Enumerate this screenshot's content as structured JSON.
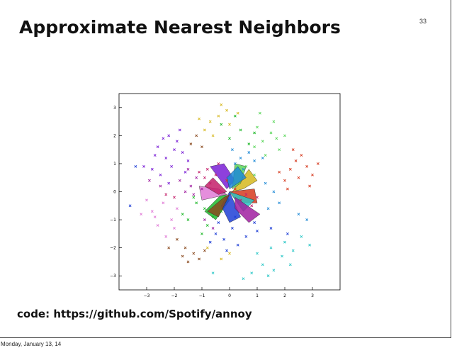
{
  "slide": {
    "title": "Approximate Nearest Neighbors",
    "page_number": "33",
    "code_line": "code: https://github.com/Spotify/annoy",
    "footer_date": "Monday, January 13, 14"
  },
  "chart_data": {
    "type": "scatter",
    "title": "",
    "xlabel": "",
    "ylabel": "",
    "xlim": [
      -4,
      4
    ],
    "ylim": [
      -3.5,
      3.5
    ],
    "x_ticks": [
      "−3",
      "−2",
      "−1",
      "0",
      "1",
      "2",
      "3"
    ],
    "x_tick_values": [
      -3,
      -2,
      -1,
      0,
      1,
      2,
      3
    ],
    "y_ticks": [
      "3",
      "2",
      "1",
      "0",
      "−1",
      "−2",
      "−3"
    ],
    "y_tick_values": [
      3,
      2,
      1,
      0,
      -1,
      -2,
      -3
    ],
    "grid": false,
    "legend": "none",
    "marker": "x",
    "description_colors": [
      "#7a1fd6",
      "#1f3fd6",
      "#d63a1f",
      "#1fb82a",
      "#e07ad6",
      "#2ac7c7",
      "#d6b81f",
      "#8a4a1f",
      "#c41f6a",
      "#5ad65a",
      "#1f8ad6",
      "#a01fa0"
    ],
    "series": [
      {
        "color": "#7a1fd6",
        "points": [
          [
            -2.6,
            1.6
          ],
          [
            -2.3,
            1.2
          ],
          [
            -2.1,
            0.9
          ],
          [
            -2.5,
            0.6
          ],
          [
            -1.9,
            1.8
          ],
          [
            -2.2,
            2.0
          ],
          [
            -1.7,
            1.4
          ],
          [
            -2.8,
            0.8
          ],
          [
            -2.0,
            1.5
          ],
          [
            -1.6,
            0.7
          ],
          [
            -2.4,
            1.9
          ],
          [
            -1.8,
            2.2
          ],
          [
            -3.1,
            0.9
          ],
          [
            -2.2,
            0.3
          ],
          [
            -1.5,
            1.1
          ],
          [
            -2.7,
            1.3
          ]
        ]
      },
      {
        "color": "#1f3fd6",
        "points": [
          [
            -0.5,
            -1.5
          ],
          [
            -0.2,
            -1.7
          ],
          [
            0.1,
            -1.3
          ],
          [
            -0.4,
            -1.1
          ],
          [
            0.3,
            -1.9
          ],
          [
            -0.1,
            -2.1
          ],
          [
            1.0,
            -1.4
          ],
          [
            0.6,
            -1.6
          ],
          [
            -0.7,
            -1.8
          ],
          [
            0.2,
            -0.9
          ],
          [
            0.9,
            -1.1
          ],
          [
            -3.4,
            0.9
          ],
          [
            -3.6,
            -0.5
          ],
          [
            1.5,
            -1.3
          ],
          [
            2.1,
            -1.5
          ]
        ]
      },
      {
        "color": "#d63a1f",
        "points": [
          [
            2.2,
            0.8
          ],
          [
            2.5,
            0.5
          ],
          [
            2.8,
            0.9
          ],
          [
            2.4,
            1.1
          ],
          [
            2.0,
            0.4
          ],
          [
            3.0,
            0.6
          ],
          [
            2.6,
            1.3
          ],
          [
            2.1,
            0.1
          ],
          [
            3.2,
            1.0
          ],
          [
            2.9,
            0.2
          ],
          [
            1.8,
            0.7
          ],
          [
            2.3,
            1.5
          ],
          [
            -0.1,
            0.4
          ],
          [
            0.2,
            0.1
          ]
        ]
      },
      {
        "color": "#1fb82a",
        "points": [
          [
            -0.9,
            -0.6
          ],
          [
            -0.6,
            -0.9
          ],
          [
            -1.2,
            -0.4
          ],
          [
            -0.8,
            -1.2
          ],
          [
            -1.5,
            -1.0
          ],
          [
            -0.3,
            -0.7
          ],
          [
            -1.0,
            -1.5
          ],
          [
            -1.3,
            -0.2
          ],
          [
            0.0,
            1.9
          ],
          [
            0.4,
            2.2
          ],
          [
            0.7,
            1.7
          ],
          [
            -0.3,
            2.4
          ],
          [
            0.2,
            2.7
          ],
          [
            0.9,
            2.1
          ],
          [
            -1.7,
            -0.8
          ]
        ]
      },
      {
        "color": "#e07ad6",
        "points": [
          [
            -2.4,
            -0.4
          ],
          [
            -2.8,
            -0.7
          ],
          [
            -2.1,
            -1.0
          ],
          [
            -2.6,
            -1.2
          ],
          [
            -3.0,
            -0.3
          ],
          [
            -2.3,
            -1.6
          ],
          [
            -1.9,
            -0.6
          ],
          [
            -2.7,
            -0.9
          ],
          [
            -3.2,
            -0.8
          ],
          [
            -2.0,
            -1.3
          ]
        ]
      },
      {
        "color": "#2ac7c7",
        "points": [
          [
            1.5,
            -2.0
          ],
          [
            1.9,
            -2.3
          ],
          [
            2.3,
            -2.1
          ],
          [
            1.2,
            -2.6
          ],
          [
            2.0,
            -1.8
          ],
          [
            1.6,
            -2.8
          ],
          [
            2.6,
            -1.6
          ],
          [
            0.8,
            -2.9
          ],
          [
            2.2,
            -2.6
          ],
          [
            1.0,
            -2.2
          ],
          [
            -0.6,
            -2.9
          ],
          [
            2.9,
            -1.9
          ],
          [
            0.5,
            -3.1
          ],
          [
            1.4,
            -3.0
          ]
        ]
      },
      {
        "color": "#d6b81f",
        "points": [
          [
            -0.4,
            2.7
          ],
          [
            -0.1,
            2.9
          ],
          [
            -0.7,
            2.5
          ],
          [
            0.0,
            2.4
          ],
          [
            -0.9,
            2.2
          ],
          [
            -0.3,
            3.1
          ],
          [
            -1.1,
            2.6
          ],
          [
            0.3,
            2.8
          ],
          [
            -0.6,
            2.0
          ],
          [
            -0.8,
            -2.0
          ],
          [
            -0.3,
            -2.4
          ],
          [
            0.0,
            -2.2
          ]
        ]
      },
      {
        "color": "#8a4a1f",
        "points": [
          [
            -1.6,
            -2.0
          ],
          [
            -1.3,
            -2.2
          ],
          [
            -1.9,
            -1.7
          ],
          [
            -1.1,
            -2.4
          ],
          [
            -1.5,
            -2.5
          ],
          [
            -2.2,
            -2.0
          ],
          [
            -0.9,
            -2.1
          ],
          [
            -1.7,
            -2.3
          ],
          [
            -1.2,
            2.0
          ],
          [
            -1.4,
            1.7
          ],
          [
            -1.0,
            1.6
          ]
        ]
      },
      {
        "color": "#c41f6a",
        "points": [
          [
            -0.8,
            0.8
          ],
          [
            -0.5,
            0.6
          ],
          [
            -0.9,
            0.5
          ],
          [
            -0.4,
            1.0
          ],
          [
            -0.7,
            0.3
          ],
          [
            -1.1,
            0.7
          ],
          [
            0.4,
            -0.3
          ],
          [
            0.8,
            -0.5
          ],
          [
            0.6,
            -0.1
          ],
          [
            1.0,
            -0.2
          ],
          [
            -2.0,
            -0.2
          ],
          [
            -2.3,
            -0.1
          ]
        ]
      },
      {
        "color": "#5ad65a",
        "points": [
          [
            1.2,
            1.8
          ],
          [
            1.5,
            2.1
          ],
          [
            1.0,
            2.3
          ],
          [
            1.8,
            1.5
          ],
          [
            1.3,
            1.3
          ],
          [
            1.6,
            2.5
          ],
          [
            0.9,
            1.6
          ],
          [
            2.0,
            2.0
          ],
          [
            1.1,
            2.8
          ],
          [
            1.7,
            1.9
          ],
          [
            0.6,
            0.9
          ],
          [
            0.9,
            0.6
          ]
        ]
      },
      {
        "color": "#1f8ad6",
        "points": [
          [
            0.4,
            1.2
          ],
          [
            0.7,
            1.4
          ],
          [
            0.2,
            1.0
          ],
          [
            0.9,
            1.1
          ],
          [
            0.5,
            0.8
          ],
          [
            1.2,
            1.2
          ],
          [
            0.1,
            1.5
          ],
          [
            1.3,
            0.3
          ],
          [
            1.6,
            0.0
          ],
          [
            1.8,
            -0.4
          ],
          [
            1.4,
            -0.6
          ],
          [
            2.5,
            -0.8
          ],
          [
            2.8,
            -1.0
          ]
        ]
      },
      {
        "color": "#a01fa0",
        "points": [
          [
            -1.4,
            0.2
          ],
          [
            -1.2,
            0.5
          ],
          [
            -1.6,
            0.0
          ],
          [
            -1.3,
            -0.1
          ],
          [
            -1.8,
            0.4
          ],
          [
            -1.0,
            0.1
          ],
          [
            -1.5,
            0.8
          ],
          [
            -0.6,
            -1.3
          ],
          [
            -0.9,
            -1.0
          ],
          [
            -2.5,
            0.2
          ],
          [
            -2.9,
            0.4
          ]
        ]
      }
    ],
    "regions": [
      {
        "color": "#1fb82a",
        "polygon": [
          [
            -0.2,
            0.0
          ],
          [
            -0.9,
            -0.7
          ],
          [
            -0.5,
            -1.0
          ],
          [
            0.0,
            -0.3
          ]
        ]
      },
      {
        "color": "#d63a1f",
        "polygon": [
          [
            0.0,
            0.0
          ],
          [
            0.9,
            0.1
          ],
          [
            1.0,
            -0.4
          ],
          [
            0.3,
            -0.4
          ]
        ]
      },
      {
        "color": "#1f3fd6",
        "polygon": [
          [
            0.0,
            0.0
          ],
          [
            0.4,
            -0.9
          ],
          [
            0.0,
            -1.1
          ],
          [
            -0.3,
            -0.5
          ]
        ]
      },
      {
        "color": "#7a1fd6",
        "polygon": [
          [
            -0.1,
            0.1
          ],
          [
            -0.7,
            0.9
          ],
          [
            -0.2,
            1.0
          ],
          [
            0.2,
            0.4
          ]
        ]
      },
      {
        "color": "#d6b81f",
        "polygon": [
          [
            0.1,
            0.0
          ],
          [
            0.7,
            0.8
          ],
          [
            1.0,
            0.4
          ],
          [
            0.5,
            0.1
          ]
        ]
      },
      {
        "color": "#2ac7c7",
        "polygon": [
          [
            0.0,
            0.0
          ],
          [
            0.5,
            -0.7
          ],
          [
            0.9,
            -0.3
          ],
          [
            0.3,
            -0.1
          ]
        ]
      },
      {
        "color": "#e07ad6",
        "polygon": [
          [
            -0.1,
            -0.1
          ],
          [
            -1.0,
            -0.3
          ],
          [
            -1.1,
            0.2
          ],
          [
            -0.4,
            0.1
          ]
        ]
      },
      {
        "color": "#c41f6a",
        "polygon": [
          [
            -0.1,
            0.0
          ],
          [
            -0.6,
            0.5
          ],
          [
            -0.9,
            0.2
          ],
          [
            -0.4,
            -0.1
          ]
        ]
      },
      {
        "color": "#5ad65a",
        "polygon": [
          [
            0.1,
            0.1
          ],
          [
            0.2,
            1.0
          ],
          [
            0.6,
            0.9
          ],
          [
            0.4,
            0.3
          ]
        ]
      },
      {
        "color": "#8a4a1f",
        "polygon": [
          [
            0.0,
            -0.1
          ],
          [
            -0.4,
            -0.9
          ],
          [
            -0.8,
            -0.7
          ],
          [
            -0.2,
            -0.2
          ]
        ]
      },
      {
        "color": "#1f8ad6",
        "polygon": [
          [
            0.0,
            0.1
          ],
          [
            0.6,
            0.5
          ],
          [
            0.3,
            0.9
          ],
          [
            -0.1,
            0.5
          ]
        ]
      },
      {
        "color": "#a01fa0",
        "polygon": [
          [
            0.2,
            -0.2
          ],
          [
            1.1,
            -0.8
          ],
          [
            0.7,
            -1.1
          ],
          [
            0.2,
            -0.6
          ]
        ]
      }
    ]
  }
}
